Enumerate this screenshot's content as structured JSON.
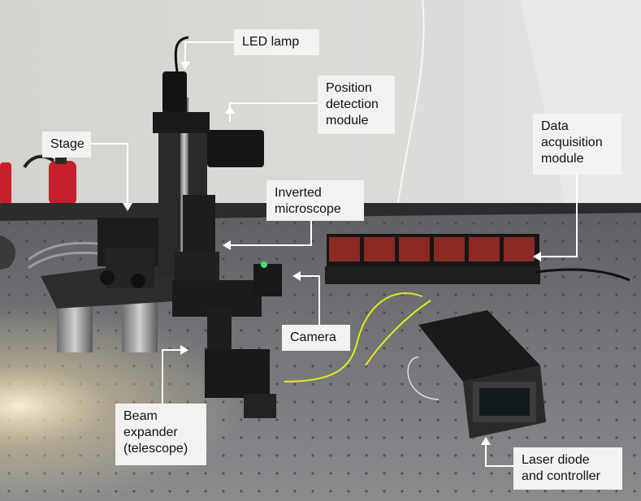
{
  "labels": {
    "led_lamp": "LED lamp",
    "position_detection": "Position\ndetection\nmodule",
    "stage": "Stage",
    "data_acquisition": "Data\nacquisition\nmodule",
    "inverted_microscope": "Inverted\nmicroscope",
    "camera": "Camera",
    "beam_expander": "Beam\nexpander\n(telescope)",
    "laser_diode": "Laser diode\nand controller"
  },
  "colors": {
    "wall": "#dcdbd6",
    "table_top": "#6f7174",
    "label_bg": "#f2f2f0",
    "leader_line": "#ffffff",
    "fiber": "#e8e620",
    "daq_module": "#8a2a22",
    "extinguisher": "#c8202a"
  }
}
